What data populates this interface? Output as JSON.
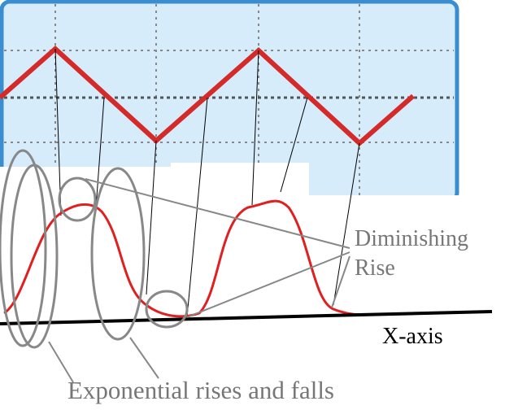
{
  "labels": {
    "diminishing": "Diminishing",
    "rise": "Rise",
    "x_axis": "X-axis",
    "caption": "Exponential rises and falls"
  }
}
